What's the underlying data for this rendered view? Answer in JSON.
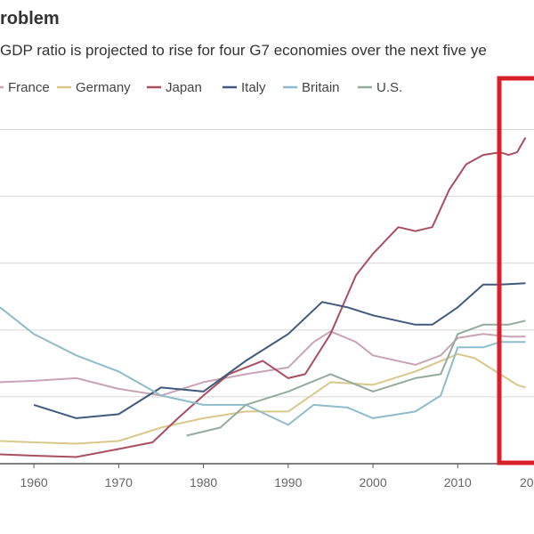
{
  "chart_data": {
    "type": "line",
    "title": "roblem",
    "subtitle": "GDP ratio is projected to rise for four G7 economies over the next five ye",
    "xlim": [
      1956,
      2019
    ],
    "xticks": [
      1960,
      1970,
      1980,
      1990,
      2000,
      2010,
      {
        "value": 2020,
        "label": "20"
      }
    ],
    "ylim": [
      0,
      267
    ],
    "yticks": [
      0,
      50,
      100,
      150,
      200,
      250
    ],
    "grid": true,
    "series": [
      {
        "name": "France",
        "color": "#c9a3b6",
        "x": [
          1956,
          1960,
          1965,
          1970,
          1975,
          1980,
          1985,
          1990,
          1993,
          1995,
          1998,
          2000,
          2005,
          2008,
          2010,
          2013,
          2016,
          2018
        ],
        "values": [
          61,
          62,
          64,
          56,
          51,
          61,
          67,
          72,
          91,
          99,
          91,
          81,
          74,
          81,
          94,
          97,
          95,
          95
        ]
      },
      {
        "name": "Germany",
        "color": "#d9c88a",
        "x": [
          1956,
          1960,
          1965,
          1970,
          1975,
          1980,
          1985,
          1990,
          1995,
          2000,
          2005,
          2010,
          2012,
          2015,
          2017,
          2018
        ],
        "values": [
          17,
          16,
          15,
          17,
          27,
          34,
          39,
          39,
          61,
          59,
          69,
          82,
          79,
          67,
          59,
          57
        ]
      },
      {
        "name": "Japan",
        "color": "#a94f60",
        "x": [
          1956,
          1960,
          1965,
          1970,
          1974,
          1977,
          1980,
          1983,
          1987,
          1990,
          1992,
          1995,
          1998,
          2000,
          2003,
          2005,
          2007,
          2009,
          2011,
          2013,
          2015,
          2016,
          2017,
          2018
        ],
        "values": [
          7,
          6,
          5,
          11,
          16,
          34,
          51,
          67,
          77,
          64,
          67,
          97,
          141,
          157,
          177,
          174,
          177,
          205,
          224,
          231,
          233,
          231,
          233,
          244
        ]
      },
      {
        "name": "Italy",
        "color": "#3f5a7e",
        "x": [
          1960,
          1965,
          1970,
          1975,
          1980,
          1985,
          1990,
          1994,
          1997,
          2000,
          2005,
          2007,
          2010,
          2013,
          2015,
          2018
        ],
        "values": [
          44,
          34,
          37,
          57,
          54,
          77,
          97,
          121,
          117,
          111,
          104,
          104,
          117,
          134,
          134,
          135
        ]
      },
      {
        "name": "Britain",
        "color": "#8fbccb",
        "x": [
          1956,
          1960,
          1965,
          1970,
          1975,
          1980,
          1985,
          1990,
          1993,
          1997,
          2000,
          2005,
          2008,
          2010,
          2013,
          2015,
          2018
        ],
        "values": [
          117,
          97,
          81,
          69,
          51,
          44,
          44,
          29,
          44,
          42,
          34,
          39,
          51,
          87,
          87,
          91,
          91
        ]
      },
      {
        "name": "U.S.",
        "color": "#93ab9d",
        "x": [
          1978,
          1982,
          1985,
          1990,
          1995,
          2000,
          2005,
          2008,
          2010,
          2013,
          2016,
          2018
        ],
        "values": [
          21,
          27,
          44,
          54,
          67,
          54,
          64,
          67,
          97,
          104,
          104,
          107
        ]
      }
    ]
  }
}
